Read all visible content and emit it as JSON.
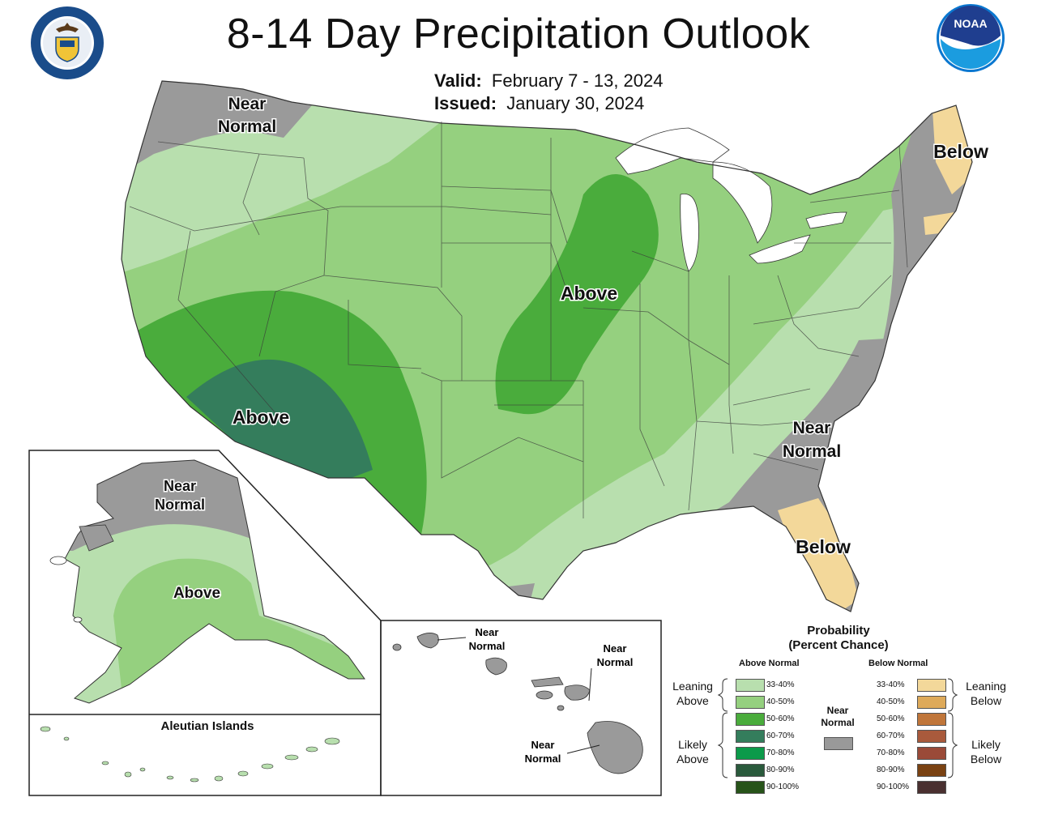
{
  "title": "8-14 Day Precipitation Outlook",
  "valid_label": "Valid:",
  "valid_value": "February 7 - 13, 2024",
  "issued_label": "Issued:",
  "issued_value": "January 30, 2024",
  "logos": {
    "doc_seal_text": "DEPARTMENT OF COMMERCE · UNITED STATES OF AMERICA",
    "noaa_text": "NOAA"
  },
  "map_labels": {
    "nw_near_normal_1": "Near",
    "nw_near_normal_2": "Normal",
    "ne_below": "Below",
    "midwest_above": "Above",
    "southwest_above": "Above",
    "se_near_normal_1": "Near",
    "se_near_normal_2": "Normal",
    "florida_below": "Below",
    "alaska_near_normal_1": "Near",
    "alaska_near_normal_2": "Normal",
    "alaska_above": "Above",
    "aleutian_title": "Aleutian Islands",
    "hawaii_nw_1": "Near",
    "hawaii_nw_2": "Normal",
    "hawaii_ne_1": "Near",
    "hawaii_ne_2": "Normal",
    "hawaii_s_1": "Near",
    "hawaii_s_2": "Normal"
  },
  "legend": {
    "title_1": "Probability",
    "title_2": "(Percent Chance)",
    "above_header": "Above Normal",
    "below_header": "Below Normal",
    "near_normal_1": "Near",
    "near_normal_2": "Normal",
    "leaning_above_1": "Leaning",
    "leaning_above_2": "Above",
    "likely_above_1": "Likely",
    "likely_above_2": "Above",
    "leaning_below_1": "Leaning",
    "leaning_below_2": "Below",
    "likely_below_1": "Likely",
    "likely_below_2": "Below",
    "above_bins": [
      {
        "label": "33-40%",
        "color": "#b8dfae"
      },
      {
        "label": "40-50%",
        "color": "#95d07f"
      },
      {
        "label": "50-60%",
        "color": "#4aac3c"
      },
      {
        "label": "60-70%",
        "color": "#347d5c"
      },
      {
        "label": "70-80%",
        "color": "#0c9a4a"
      },
      {
        "label": "80-90%",
        "color": "#2a5a3c"
      },
      {
        "label": "90-100%",
        "color": "#275319"
      }
    ],
    "below_bins": [
      {
        "label": "33-40%",
        "color": "#f3d89a"
      },
      {
        "label": "40-50%",
        "color": "#deaa5a"
      },
      {
        "label": "50-60%",
        "color": "#c0763a"
      },
      {
        "label": "60-70%",
        "color": "#a95a3c"
      },
      {
        "label": "70-80%",
        "color": "#9a4a38"
      },
      {
        "label": "80-90%",
        "color": "#7a4212"
      },
      {
        "label": "90-100%",
        "color": "#4a3030"
      }
    ],
    "near_normal_color": "#999999"
  }
}
